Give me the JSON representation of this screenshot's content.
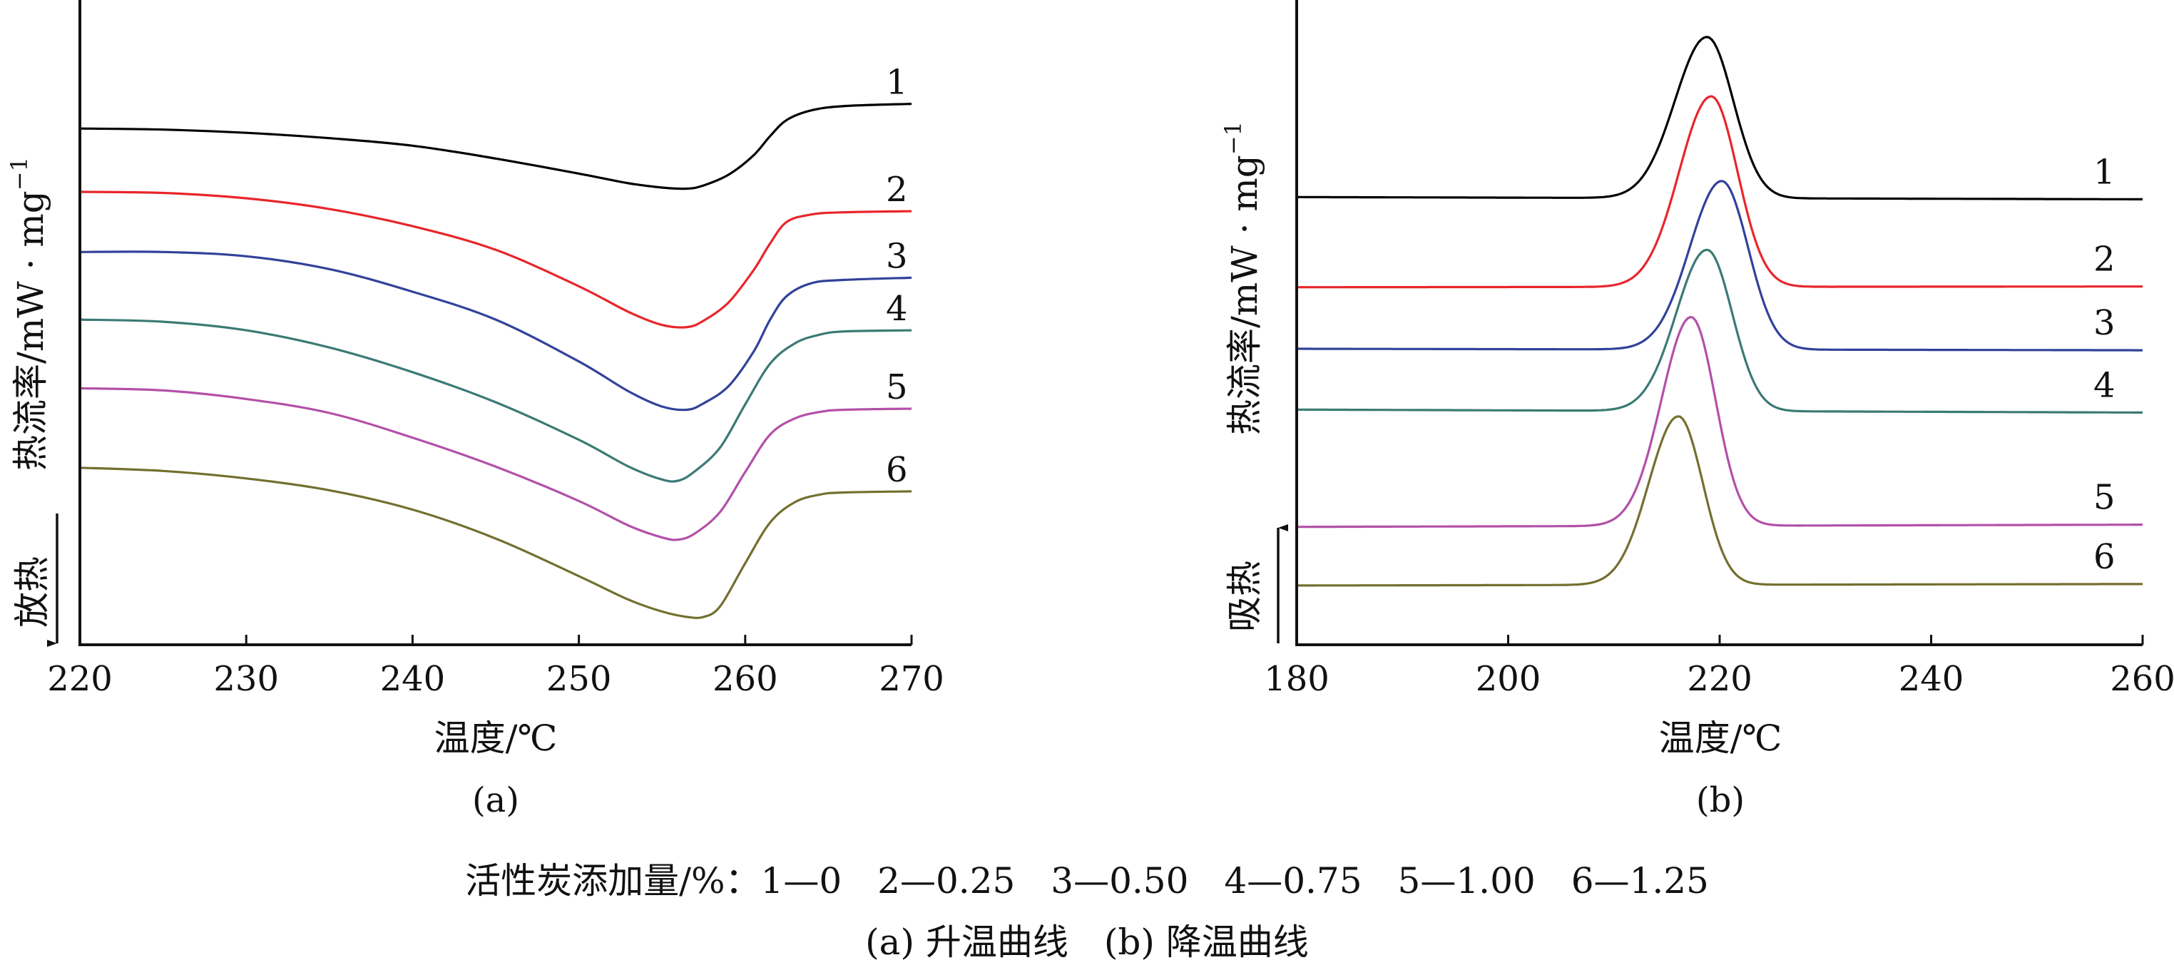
{
  "colors": {
    "1": "#000000",
    "2": "#e8262b",
    "3": "#32429a",
    "4": "#3b7a74",
    "5": "#b350a8",
    "6": "#736f2f"
  },
  "chart_data": [
    {
      "type": "line",
      "panel_label": "(a)",
      "xlabel": "温度/℃",
      "ylabel": "热流率/mW · mg",
      "ylabel_superscript": "−1",
      "direction_label": "放热",
      "direction_arrow": "down",
      "xlim": [
        220,
        270
      ],
      "xticks": [
        "220",
        "230",
        "240",
        "250",
        "260",
        "270"
      ],
      "y_ticks_shown": false,
      "series": [
        {
          "name": "1",
          "label": "1",
          "color": "#000000",
          "x": [
            220,
            225,
            230,
            235,
            240,
            245,
            250,
            253,
            255,
            256.5,
            257.5,
            259,
            260.5,
            261.5,
            262.5,
            264,
            266,
            270
          ],
          "y": [
            0.55,
            0.54,
            0.51,
            0.46,
            0.39,
            0.27,
            0.13,
            0.04,
            0.0,
            -0.01,
            0.02,
            0.12,
            0.3,
            0.48,
            0.63,
            0.72,
            0.76,
            0.78
          ]
        },
        {
          "name": "2",
          "label": "2",
          "color": "#e8262b",
          "x": [
            220,
            225,
            230,
            235,
            240,
            245,
            250,
            253,
            255,
            256.5,
            257.5,
            259,
            260.5,
            261.5,
            262.5,
            264,
            266,
            270
          ],
          "y": [
            -0.04,
            -0.05,
            -0.1,
            -0.2,
            -0.36,
            -0.58,
            -0.92,
            -1.16,
            -1.28,
            -1.3,
            -1.24,
            -1.07,
            -0.77,
            -0.52,
            -0.32,
            -0.25,
            -0.23,
            -0.22
          ]
        },
        {
          "name": "3",
          "label": "3",
          "color": "#32429a",
          "x": [
            220,
            225,
            230,
            235,
            240,
            245,
            250,
            253,
            255,
            256.5,
            257.5,
            259,
            260.5,
            261.5,
            262.5,
            264,
            266,
            270
          ],
          "y": [
            -0.6,
            -0.6,
            -0.64,
            -0.76,
            -0.97,
            -1.23,
            -1.62,
            -1.9,
            -2.04,
            -2.07,
            -2.01,
            -1.85,
            -1.53,
            -1.23,
            -1.01,
            -0.89,
            -0.86,
            -0.84
          ]
        },
        {
          "name": "4",
          "label": "4",
          "color": "#3b7a74",
          "x": [
            220,
            225,
            230,
            235,
            240,
            245,
            250,
            253,
            255,
            256,
            257,
            258.5,
            260,
            261.5,
            263,
            264.5,
            266,
            270
          ],
          "y": [
            -1.23,
            -1.25,
            -1.33,
            -1.49,
            -1.72,
            -2.0,
            -2.35,
            -2.6,
            -2.72,
            -2.73,
            -2.64,
            -2.42,
            -2.02,
            -1.64,
            -1.45,
            -1.37,
            -1.34,
            -1.33
          ]
        },
        {
          "name": "5",
          "label": "5",
          "color": "#b350a8",
          "x": [
            220,
            225,
            230,
            235,
            240,
            245,
            250,
            253,
            255,
            256,
            257,
            258.5,
            260,
            261.5,
            263,
            264.5,
            266,
            270
          ],
          "y": [
            -1.87,
            -1.89,
            -1.97,
            -2.1,
            -2.33,
            -2.6,
            -2.92,
            -3.15,
            -3.26,
            -3.28,
            -3.22,
            -3.02,
            -2.65,
            -2.3,
            -2.15,
            -2.09,
            -2.07,
            -2.06
          ]
        },
        {
          "name": "6",
          "label": "6",
          "color": "#736f2f",
          "x": [
            220,
            225,
            230,
            235,
            240,
            245,
            250,
            253,
            255,
            256.5,
            257.5,
            258.5,
            260,
            261.5,
            263,
            264.5,
            266,
            270
          ],
          "y": [
            -2.61,
            -2.64,
            -2.71,
            -2.82,
            -3.0,
            -3.27,
            -3.62,
            -3.84,
            -3.95,
            -4.0,
            -4.0,
            -3.9,
            -3.5,
            -3.12,
            -2.93,
            -2.86,
            -2.84,
            -2.83
          ]
        }
      ]
    },
    {
      "type": "line",
      "panel_label": "(b)",
      "xlabel": "温度/℃",
      "ylabel": "热流率/mW · mg",
      "ylabel_superscript": "−1",
      "direction_label": "吸热",
      "direction_arrow": "up",
      "xlim": [
        180,
        260
      ],
      "xticks": [
        "180",
        "200",
        "220",
        "240",
        "260"
      ],
      "y_ticks_shown": false,
      "series": [
        {
          "name": "1",
          "label": "1",
          "color": "#000000",
          "peak_x": 218.8,
          "baseline": 0.0,
          "peak_height": 2.2,
          "sigma": 2.7,
          "slope": -0.03
        },
        {
          "name": "2",
          "label": "2",
          "color": "#e8262b",
          "peak_x": 219.2,
          "baseline": -1.23,
          "peak_height": 2.6,
          "sigma": 2.7,
          "slope": 0.01
        },
        {
          "name": "3",
          "label": "3",
          "color": "#32429a",
          "peak_x": 220.2,
          "baseline": -2.07,
          "peak_height": 2.3,
          "sigma": 2.7,
          "slope": -0.02
        },
        {
          "name": "4",
          "label": "4",
          "color": "#3b7a74",
          "peak_x": 218.8,
          "baseline": -2.9,
          "peak_height": 2.2,
          "sigma": 2.6,
          "slope": -0.04
        },
        {
          "name": "5",
          "label": "5",
          "color": "#b350a8",
          "peak_x": 217.3,
          "baseline": -4.5,
          "peak_height": 2.85,
          "sigma": 2.5,
          "slope": 0.03
        },
        {
          "name": "6",
          "label": "6",
          "color": "#736f2f",
          "peak_x": 216.1,
          "baseline": -5.3,
          "peak_height": 2.3,
          "sigma": 2.5,
          "slope": 0.02
        }
      ]
    }
  ],
  "caption": {
    "legend_line": "活性炭添加量/%：1—0　2—0.25　3—0.50　4—0.75　5—1.00　6—1.25",
    "subtitle_line": "(a) 升温曲线　(b) 降温曲线"
  }
}
